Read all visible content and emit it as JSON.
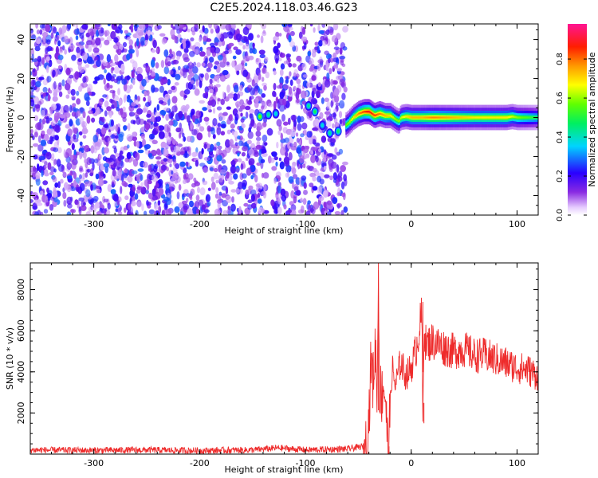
{
  "title": "C2E5.2024.118.03.46.G23",
  "chart_data": [
    {
      "type": "heatmap",
      "xlabel": "Height of straight line (km)",
      "ylabel": "Frequency (Hz)",
      "xlim": [
        -360,
        120
      ],
      "ylim": [
        -50,
        48
      ],
      "xticks": [
        -300,
        -200,
        -100,
        0,
        100
      ],
      "yticks": [
        -40,
        -20,
        0,
        20,
        40
      ],
      "xticklabels": [
        "-300",
        "-200",
        "-100",
        "0",
        "100"
      ],
      "yticklabels": [
        "-40",
        "-20",
        "0",
        "20",
        "40"
      ],
      "colorbar": {
        "label": "Normalized spectral amplitude",
        "range": [
          0,
          0.98
        ],
        "ticks": [
          0,
          0.2,
          0.4,
          0.6,
          0.8
        ],
        "ticklabels": [
          "0.0",
          "0.2",
          "0.4",
          "0.6",
          "0.8"
        ],
        "colormap": "rainbow (white-violet-blue-cyan-green-yellow-red-magenta)"
      },
      "noise_region_x": [
        -360,
        -62
      ],
      "signal_track": {
        "x": [
          -145,
          -137,
          -128,
          -100,
          -93,
          -88,
          -82,
          -76,
          -70,
          -65,
          -60,
          -55,
          -50,
          -45,
          -40,
          -35,
          -30,
          -25,
          -20,
          -15,
          -12,
          -10,
          -5,
          0,
          10,
          20,
          40,
          60,
          80,
          90,
          95,
          100,
          110,
          120
        ],
        "freq_hz": [
          0.5,
          1.5,
          2,
          6,
          3,
          -3,
          -7,
          -9,
          -8,
          -5,
          -3,
          0,
          2,
          3,
          3,
          1,
          2,
          1,
          1,
          -1,
          -2,
          0,
          0.5,
          0,
          0,
          0,
          0,
          0,
          0,
          0,
          0.5,
          0,
          0,
          0
        ],
        "amplitude": [
          0.45,
          0.3,
          0.25,
          0.3,
          0.35,
          0.25,
          0.25,
          0.3,
          0.4,
          0.55,
          0.6,
          0.7,
          0.8,
          0.85,
          0.9,
          0.85,
          0.8,
          0.75,
          0.7,
          0.6,
          0.6,
          0.65,
          0.7,
          0.75,
          0.75,
          0.8,
          0.75,
          0.7,
          0.7,
          0.7,
          0.65,
          0.6,
          0.55,
          0.5
        ]
      }
    },
    {
      "type": "line",
      "xlabel": "Height of straight line (km)",
      "ylabel": "SNR (10 * v/v)",
      "xlim": [
        -360,
        120
      ],
      "ylim": [
        0,
        9300
      ],
      "xticks": [
        -300,
        -200,
        -100,
        0,
        100
      ],
      "yticks": [
        2000,
        4000,
        6000,
        8000
      ],
      "xticklabels": [
        "-300",
        "-200",
        "-100",
        "0",
        "100"
      ],
      "yticklabels": [
        "2000",
        "4000",
        "6000",
        "8000"
      ],
      "color": "#ee2b2b",
      "series": [
        {
          "x": [
            -360,
            -300,
            -250,
            -200,
            -150,
            -125,
            -100,
            -60,
            -42,
            -40,
            -38,
            -36,
            -34,
            -32,
            -31,
            -30,
            -28,
            -26,
            -24,
            -22,
            -20,
            -18,
            -15,
            -10,
            -5,
            0,
            5,
            10,
            11,
            12,
            14,
            20,
            30,
            40,
            50,
            60,
            70,
            80,
            90,
            100,
            110,
            120
          ],
          "y": [
            200,
            180,
            200,
            170,
            200,
            300,
            200,
            250,
            400,
            1800,
            4500,
            3500,
            5200,
            3000,
            9300,
            3300,
            2800,
            3500,
            2500,
            0,
            2200,
            4200,
            3300,
            4500,
            3800,
            4200,
            5200,
            6800,
            1500,
            6200,
            5300,
            5500,
            5200,
            5000,
            5100,
            4800,
            4800,
            4600,
            4400,
            4200,
            4100,
            3800
          ]
        }
      ]
    }
  ]
}
